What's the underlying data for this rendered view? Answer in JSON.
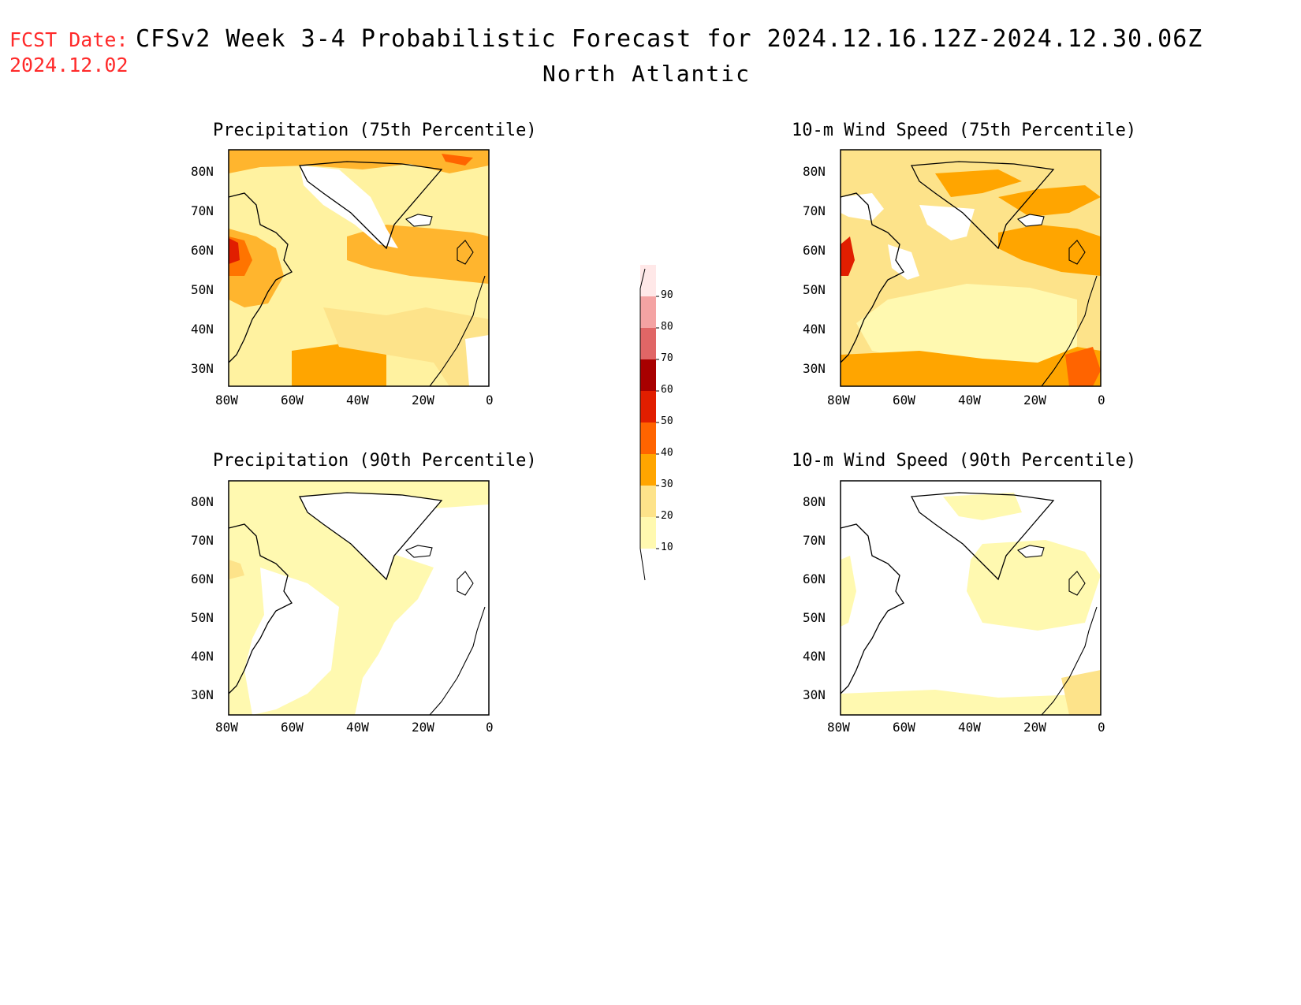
{
  "header": {
    "fcst_label": "FCST Date:",
    "fcst_date": "2024.12.02",
    "title": "CFSv2 Week 3-4 Probabilistic Forecast for 2024.12.16.12Z-2024.12.30.06Z",
    "region": "North Atlantic"
  },
  "panels": [
    {
      "id": "precip75",
      "title": "Precipitation (75th Percentile)"
    },
    {
      "id": "wind75",
      "title": "10-m Wind Speed (75th Percentile)"
    },
    {
      "id": "precip90",
      "title": "Precipitation (90th Percentile)"
    },
    {
      "id": "wind90",
      "title": "10-m Wind Speed (90th Percentile)"
    }
  ],
  "axes": {
    "lat_labels": [
      "80N",
      "70N",
      "60N",
      "50N",
      "40N",
      "30N"
    ],
    "lon_labels": [
      "80W",
      "60W",
      "40W",
      "20W",
      "0"
    ]
  },
  "colorbar": {
    "levels": [
      "10",
      "20",
      "30",
      "40",
      "50",
      "60",
      "70",
      "80",
      "90"
    ],
    "colors": [
      "#fff9b0",
      "#fde38a",
      "#ffa500",
      "#ff6400",
      "#e11e00",
      "#a80000",
      "#e06666",
      "#f4a3a3",
      "#ffe8e8"
    ]
  }
}
